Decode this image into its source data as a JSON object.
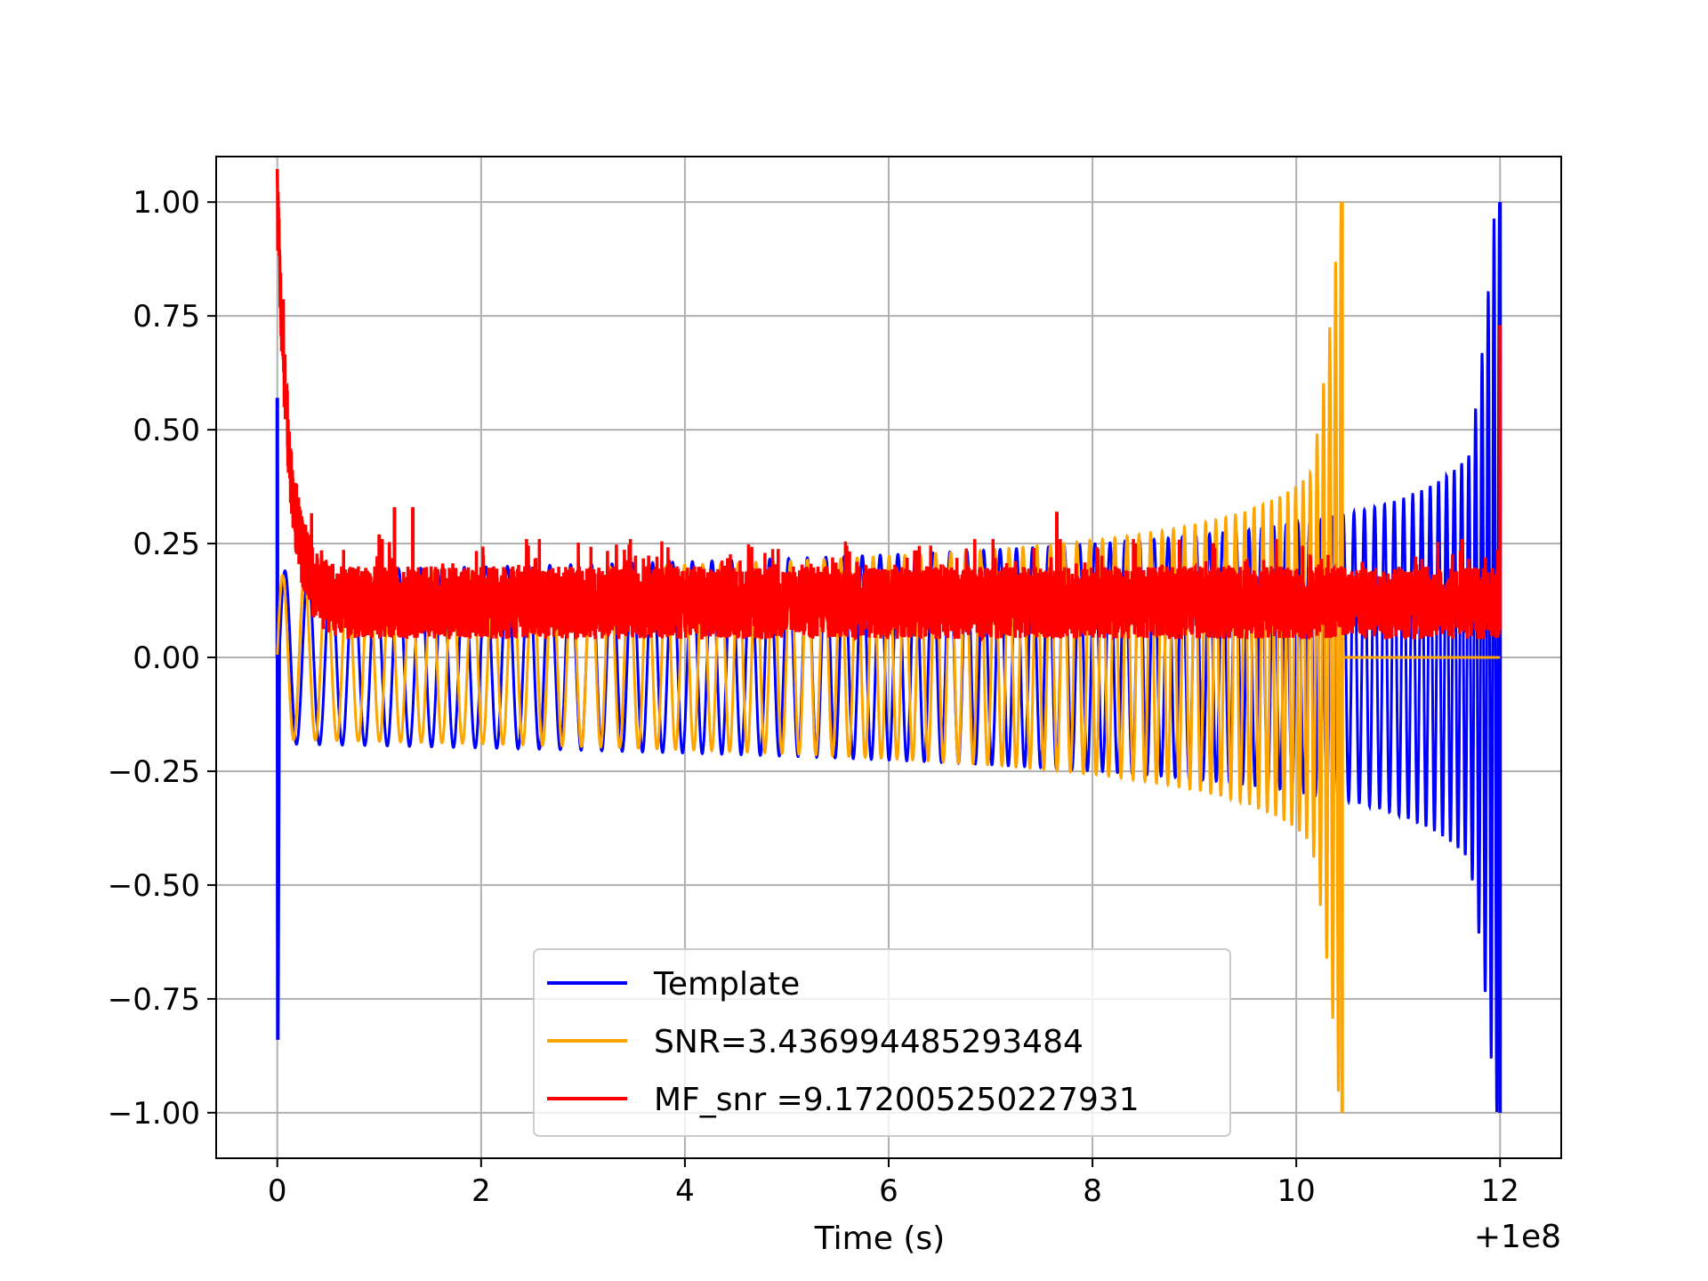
{
  "chart_data": {
    "type": "line",
    "title": "",
    "xlabel": "Time (s)",
    "ylabel": "",
    "x_offset_label": "+1e8",
    "xlim": [
      -0.6,
      12.6
    ],
    "ylim": [
      -1.1,
      1.1
    ],
    "grid": true,
    "legend_position": "lower center",
    "x_ticks": [
      0,
      2,
      4,
      6,
      8,
      10,
      12
    ],
    "x_tick_labels": [
      "0",
      "2",
      "4",
      "6",
      "8",
      "10",
      "12"
    ],
    "y_ticks": [
      1.0,
      0.75,
      0.5,
      0.25,
      0.0,
      -0.25,
      -0.5,
      -0.75,
      -1.0
    ],
    "y_tick_labels": [
      "1.00",
      "0.75",
      "0.50",
      "0.25",
      "0.00",
      "−0.25",
      "−0.50",
      "−0.75",
      "−1.00"
    ],
    "series": [
      {
        "name": "Template",
        "color": "#0000ff",
        "description_points": {
          "t_start": 0.0,
          "t_merge": 12.0,
          "start_amplitude_pos": 0.57,
          "start_amplitude_neg": -0.84,
          "steady_amplitude": 0.19,
          "peak_amplitude": 1.0,
          "lower_envelope_near_zero_after": 10.45
        }
      },
      {
        "name": "SNR=3.436994485293484",
        "color": "#ffa500",
        "description_points": {
          "t_start": 0.0,
          "t_merge": 10.45,
          "steady_amplitude": 0.18,
          "peak_amplitude": 1.0,
          "flat_value_after_merge": 0.0
        }
      },
      {
        "name": "MF_snr =9.172005250227931",
        "color": "#ff0000",
        "description_points": {
          "initial_peak": 1.0,
          "initial_t": 0.0,
          "decay_to": 0.12,
          "noise_band": [
            0.02,
            0.26
          ],
          "spikes": [
            [
              1.0,
              0.27
            ],
            [
              1.15,
              0.33
            ],
            [
              1.33,
              0.33
            ],
            [
              7.65,
              0.32
            ],
            [
              12.0,
              0.73
            ]
          ]
        }
      }
    ]
  }
}
